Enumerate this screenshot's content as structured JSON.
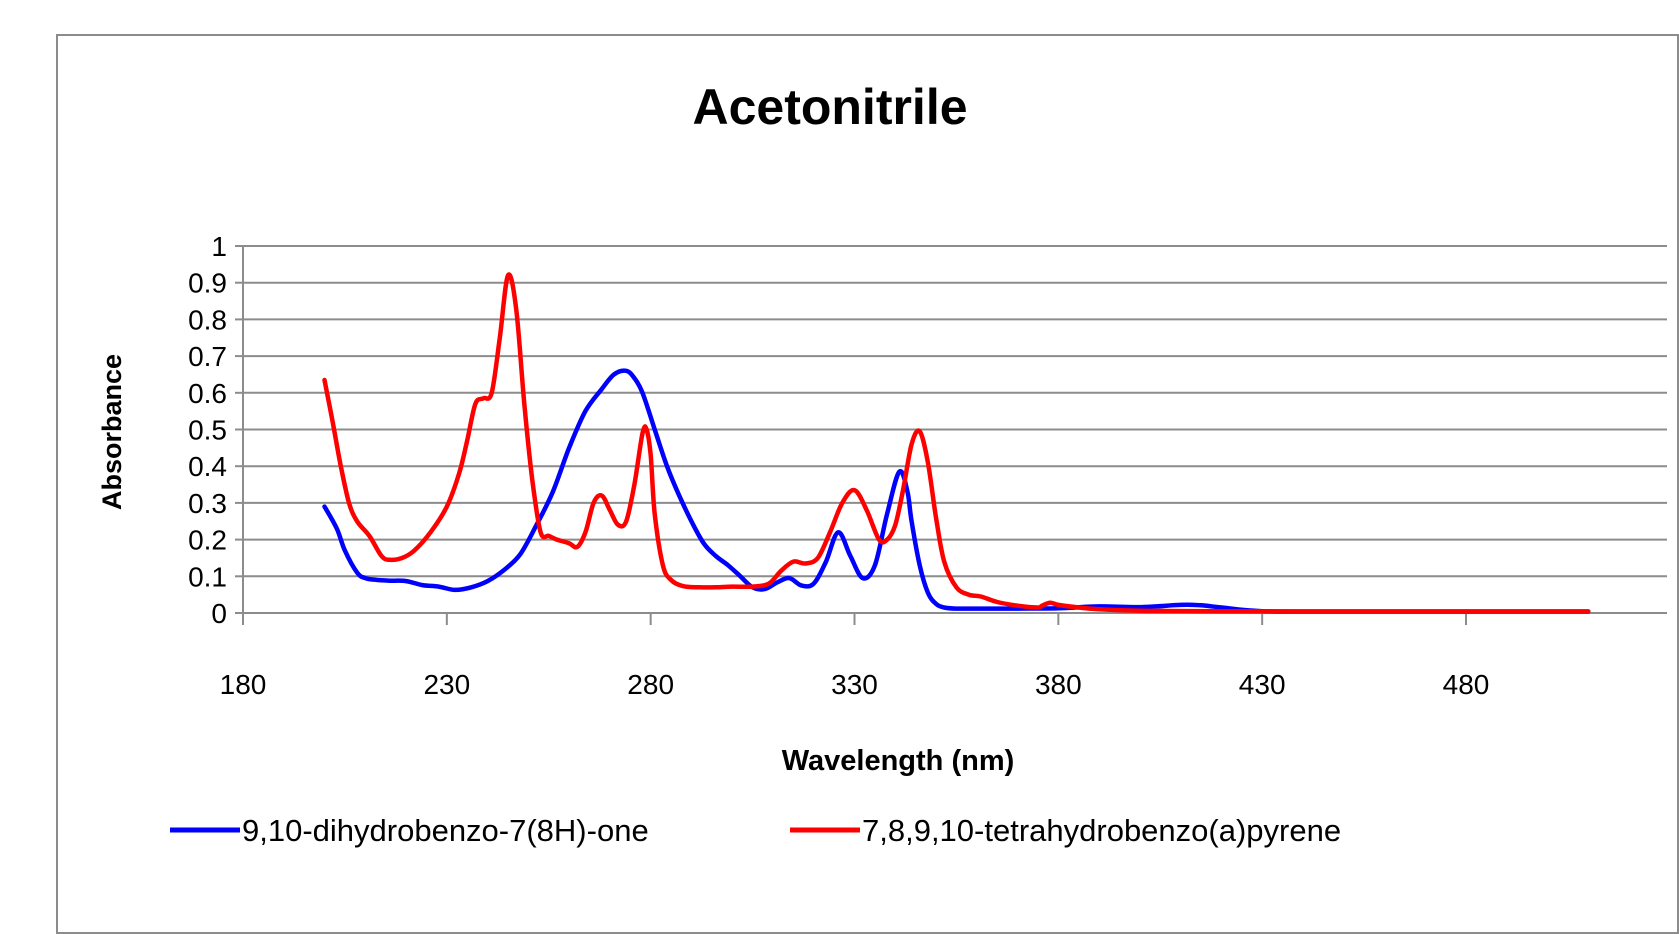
{
  "chart_data": {
    "type": "line",
    "title": "Acetonitrile",
    "xlabel": "Wavelength (nm)",
    "ylabel": "Absorbance",
    "xlim": [
      180,
      510
    ],
    "ylim": [
      0,
      1
    ],
    "x_ticks": [
      180,
      230,
      280,
      330,
      380,
      430,
      480
    ],
    "y_ticks": [
      0,
      0.1,
      0.2,
      0.3,
      0.4,
      0.5,
      0.6,
      0.7,
      0.8,
      0.9,
      1
    ],
    "grid": "horizontal",
    "legend_position": "bottom",
    "series": [
      {
        "name": "9,10-dihydrobenzo-7(8H)-one",
        "color": "#0000ff",
        "x": [
          200,
          203,
          205,
          208,
          210,
          213,
          216,
          220,
          224,
          228,
          232,
          236,
          240,
          244,
          248,
          252,
          256,
          260,
          264,
          268,
          271,
          274,
          276,
          278,
          281,
          284,
          287,
          290,
          293,
          296,
          299,
          302,
          305,
          308,
          311,
          314,
          317,
          320,
          323,
          326,
          329,
          332,
          335,
          338,
          341,
          343,
          344,
          346,
          348,
          350,
          352,
          355,
          360,
          370,
          380,
          390,
          400,
          410,
          415,
          420,
          430,
          450,
          480,
          510
        ],
        "values": [
          0.29,
          0.23,
          0.17,
          0.11,
          0.095,
          0.09,
          0.088,
          0.087,
          0.076,
          0.072,
          0.063,
          0.07,
          0.087,
          0.117,
          0.16,
          0.24,
          0.33,
          0.45,
          0.55,
          0.61,
          0.65,
          0.66,
          0.64,
          0.6,
          0.5,
          0.4,
          0.32,
          0.25,
          0.19,
          0.155,
          0.13,
          0.1,
          0.07,
          0.065,
          0.083,
          0.095,
          0.075,
          0.08,
          0.14,
          0.22,
          0.155,
          0.095,
          0.13,
          0.27,
          0.385,
          0.33,
          0.25,
          0.13,
          0.055,
          0.025,
          0.015,
          0.012,
          0.012,
          0.012,
          0.013,
          0.018,
          0.016,
          0.022,
          0.021,
          0.015,
          0.005,
          0.004,
          0.004,
          0.004
        ]
      },
      {
        "name": "7,8,9,10-tetrahydrobenzo(a)pyrene",
        "color": "#ff0000",
        "x": [
          200,
          202,
          204,
          206,
          208,
          211,
          214,
          216,
          219,
          222,
          226,
          230,
          233,
          235,
          237,
          239,
          241,
          243,
          245,
          247,
          249,
          251,
          253,
          255,
          257,
          260,
          262,
          264,
          266,
          268,
          270,
          272,
          274,
          276,
          278,
          279,
          280,
          281,
          283,
          285,
          288,
          292,
          296,
          300,
          305,
          309,
          312,
          315,
          318,
          321,
          324,
          327,
          330,
          333,
          336,
          338,
          340,
          342,
          344,
          346,
          348,
          350,
          352,
          355,
          358,
          361,
          365,
          370,
          375,
          376,
          378,
          380,
          385,
          390,
          400,
          420,
          450,
          480,
          510
        ],
        "values": [
          0.635,
          0.52,
          0.4,
          0.3,
          0.25,
          0.21,
          0.155,
          0.145,
          0.15,
          0.17,
          0.22,
          0.29,
          0.38,
          0.47,
          0.57,
          0.585,
          0.6,
          0.75,
          0.92,
          0.83,
          0.57,
          0.36,
          0.22,
          0.21,
          0.2,
          0.19,
          0.18,
          0.22,
          0.3,
          0.32,
          0.28,
          0.24,
          0.25,
          0.35,
          0.49,
          0.5,
          0.43,
          0.27,
          0.13,
          0.09,
          0.073,
          0.07,
          0.07,
          0.072,
          0.072,
          0.08,
          0.115,
          0.14,
          0.135,
          0.15,
          0.22,
          0.3,
          0.335,
          0.28,
          0.2,
          0.2,
          0.24,
          0.34,
          0.46,
          0.495,
          0.41,
          0.26,
          0.14,
          0.07,
          0.05,
          0.045,
          0.03,
          0.02,
          0.015,
          0.02,
          0.028,
          0.022,
          0.015,
          0.01,
          0.006,
          0.005,
          0.004,
          0.004,
          0.004
        ]
      }
    ]
  }
}
